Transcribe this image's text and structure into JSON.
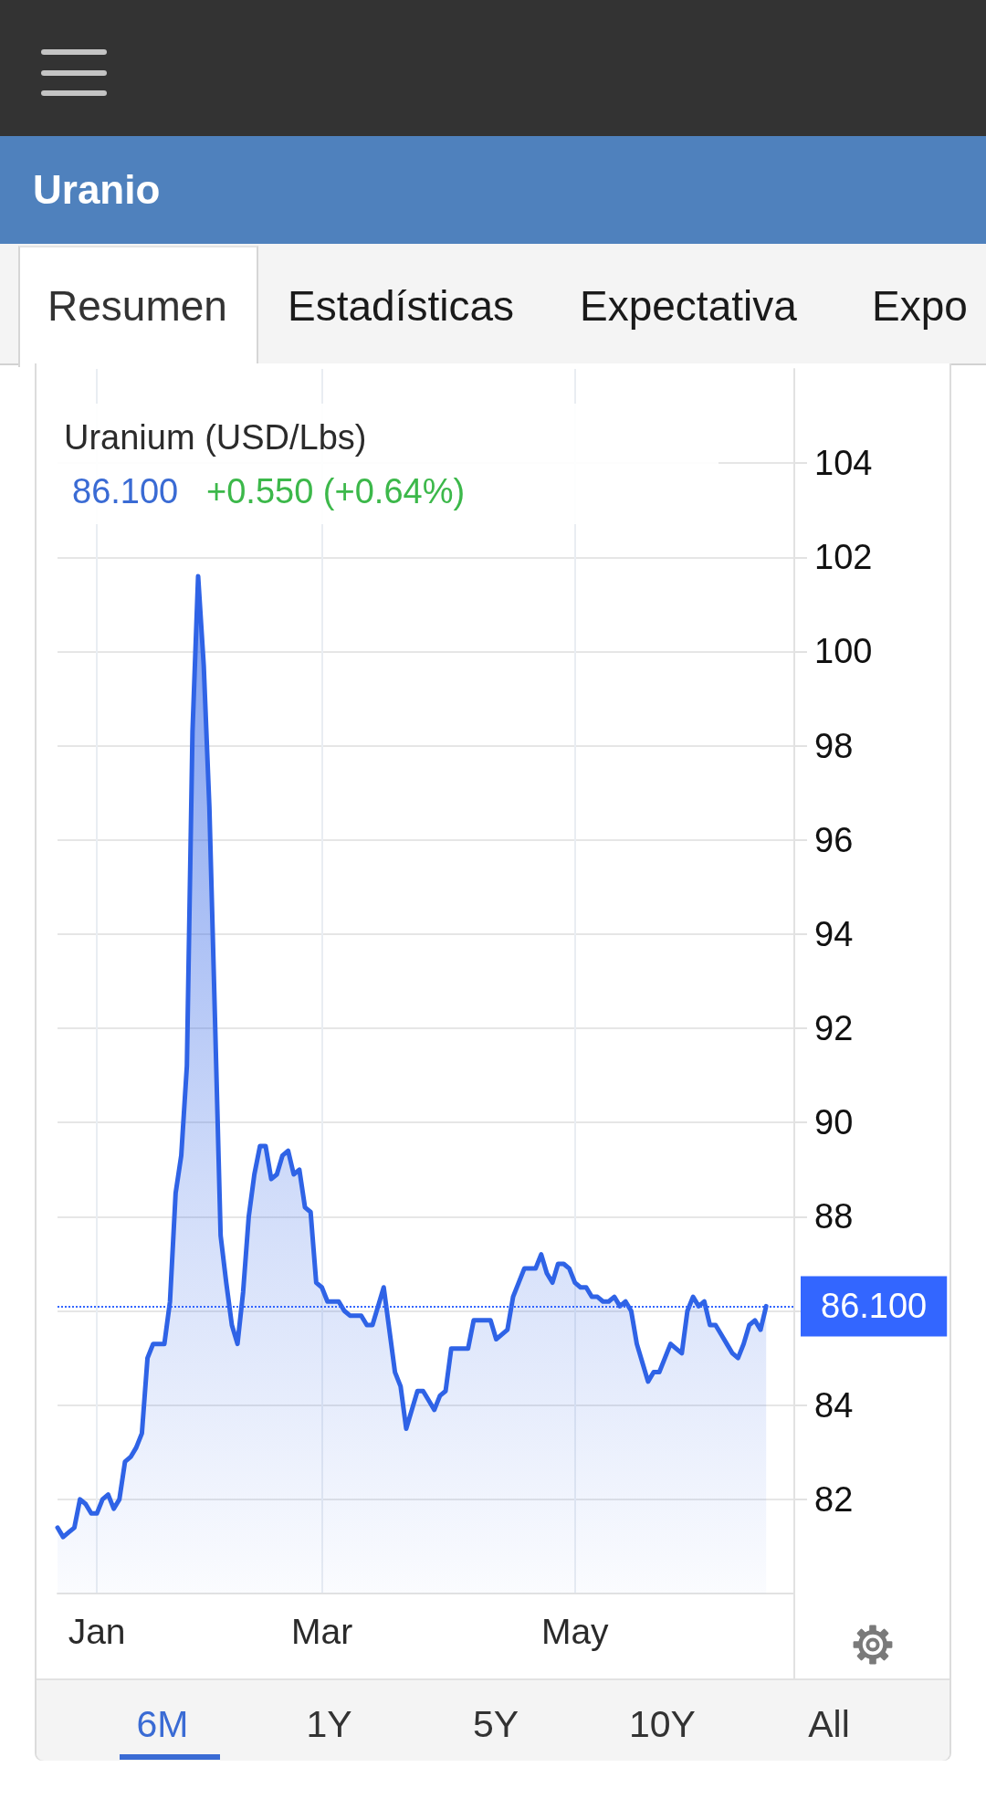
{
  "chart_data": {
    "type": "area",
    "title": "Uranio",
    "subtitle": "Uranium (USD/Lbs)",
    "categories": [
      null,
      null,
      null,
      null,
      null,
      null,
      null,
      "Jan",
      null,
      null,
      null,
      null,
      null,
      null,
      null,
      null,
      null,
      null,
      null,
      null,
      null,
      null,
      null,
      null,
      null,
      null,
      null,
      null,
      null,
      null,
      null,
      null,
      null,
      null,
      null,
      null,
      null,
      null,
      null,
      null,
      null,
      null,
      null,
      null,
      null,
      null,
      null,
      "Mar",
      null,
      null,
      null,
      null,
      null,
      null,
      null,
      null,
      null,
      null,
      null,
      null,
      null,
      null,
      null,
      null,
      null,
      null,
      null,
      null,
      null,
      null,
      null,
      null,
      null,
      null,
      null,
      null,
      null,
      null,
      null,
      null,
      null,
      null,
      null,
      null,
      null,
      null,
      null,
      null,
      null,
      null,
      null,
      null,
      "May",
      null,
      null,
      null,
      null,
      null,
      null,
      null,
      null,
      null,
      null,
      null,
      null,
      null,
      null,
      null,
      null,
      null,
      null,
      null,
      null,
      null,
      null,
      null,
      null,
      null,
      null,
      null,
      null,
      null,
      null,
      null,
      null,
      null,
      null,
      null,
      null,
      null,
      null,
      null
    ],
    "values": [
      81.4,
      81.2,
      81.3,
      81.4,
      82.0,
      81.9,
      81.7,
      81.7,
      82.0,
      82.1,
      81.8,
      82.0,
      82.8,
      82.9,
      83.1,
      83.4,
      85.0,
      85.3,
      85.3,
      85.3,
      86.2,
      88.5,
      89.3,
      91.2,
      98.3,
      101.6,
      99.7,
      96.7,
      92.2,
      87.6,
      86.6,
      85.7,
      85.3,
      86.4,
      88.0,
      88.9,
      89.5,
      89.5,
      88.8,
      88.9,
      89.3,
      89.4,
      88.9,
      89.0,
      88.2,
      88.1,
      86.6,
      86.5,
      86.2,
      86.2,
      86.2,
      86.0,
      85.9,
      85.9,
      85.9,
      85.7,
      85.7,
      86.1,
      86.5,
      85.6,
      84.7,
      84.4,
      83.5,
      83.9,
      84.3,
      84.3,
      84.1,
      83.9,
      84.2,
      84.3,
      85.2,
      85.2,
      85.2,
      85.2,
      85.8,
      85.8,
      85.8,
      85.8,
      85.4,
      85.5,
      85.6,
      86.3,
      86.6,
      86.9,
      86.9,
      86.9,
      87.2,
      86.8,
      86.6,
      87.0,
      87.0,
      86.9,
      86.6,
      86.5,
      86.5,
      86.3,
      86.3,
      86.2,
      86.2,
      86.3,
      86.1,
      86.2,
      86.0,
      85.3,
      84.9,
      84.5,
      84.7,
      84.7,
      85.0,
      85.3,
      85.2,
      85.1,
      86.0,
      86.3,
      86.1,
      86.2,
      85.7,
      85.7,
      85.5,
      85.3,
      85.1,
      85.0,
      85.3,
      85.7,
      85.8,
      85.6,
      86.1,
      null,
      null,
      null,
      null,
      null
    ],
    "color": "#2f63e6",
    "ylim": [
      80,
      106
    ],
    "yticks": [
      82,
      84,
      {
        "value": 86,
        "label": null
      },
      88,
      90,
      92,
      94,
      96,
      98,
      100,
      102,
      104
    ],
    "grid": true,
    "ref_lines": [
      {
        "axis": "y",
        "value": 86.1,
        "label": "86.100",
        "color": "#3366ff",
        "line_style": "dotted"
      }
    ],
    "annotations": [
      "Resumen",
      "Estadísticas",
      "Expectativa",
      "Expo",
      "86.100",
      "+0.550 (+0.64%)",
      "6M",
      "1Y",
      "5Y",
      "10Y",
      "All"
    ]
  }
}
